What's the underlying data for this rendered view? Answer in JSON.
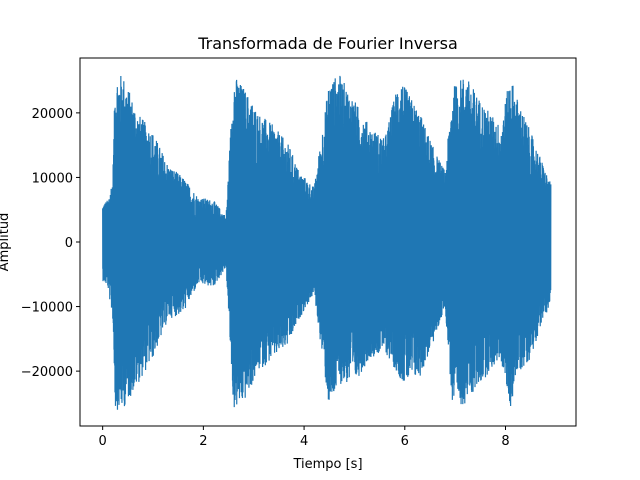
{
  "chart_data": {
    "type": "line",
    "title": "Transformada de Fourier Inversa",
    "xlabel": "Tiempo [s]",
    "ylabel": "Amplitud",
    "xlim": [
      -0.45,
      9.4
    ],
    "ylim": [
      -28500,
      28500
    ],
    "xticks": [
      0,
      2,
      4,
      6,
      8
    ],
    "xtick_labels": [
      "0",
      "2",
      "4",
      "6",
      "8"
    ],
    "yticks": [
      -20000,
      -10000,
      0,
      10000,
      20000
    ],
    "ytick_labels": [
      "−20000",
      "−10000",
      "0",
      "10000",
      "20000"
    ],
    "grid": false,
    "series": [
      {
        "color": "#1f77b4",
        "x_range": [
          0,
          8.9
        ],
        "envelope": [
          [
            0.0,
            6000,
            -6000
          ],
          [
            0.1,
            6500,
            -7000
          ],
          [
            0.2,
            10000,
            -12000
          ],
          [
            0.25,
            26000,
            -26000
          ],
          [
            0.4,
            26000,
            -26000
          ],
          [
            0.7,
            20000,
            -22000
          ],
          [
            1.0,
            17000,
            -18000
          ],
          [
            1.3,
            12000,
            -12000
          ],
          [
            1.6,
            10000,
            -11000
          ],
          [
            1.9,
            7000,
            -6500
          ],
          [
            2.2,
            6500,
            -7000
          ],
          [
            2.45,
            4000,
            -4000
          ],
          [
            2.6,
            26000,
            -26000
          ],
          [
            2.8,
            24000,
            -25000
          ],
          [
            3.1,
            20000,
            -20000
          ],
          [
            3.4,
            18000,
            -18000
          ],
          [
            3.7,
            15000,
            -16000
          ],
          [
            3.9,
            11000,
            -12000
          ],
          [
            4.2,
            8500,
            -8000
          ],
          [
            4.5,
            25000,
            -26000
          ],
          [
            4.7,
            26000,
            -22000
          ],
          [
            5.0,
            22000,
            -22000
          ],
          [
            5.3,
            18000,
            -18000
          ],
          [
            5.6,
            16000,
            -17000
          ],
          [
            5.9,
            26000,
            -21000
          ],
          [
            6.0,
            24000,
            -22000
          ],
          [
            6.3,
            20000,
            -21000
          ],
          [
            6.6,
            14000,
            -15000
          ],
          [
            6.8,
            11000,
            -10000
          ],
          [
            6.95,
            24000,
            -26000
          ],
          [
            7.2,
            26000,
            -25000
          ],
          [
            7.5,
            22000,
            -22000
          ],
          [
            7.9,
            18000,
            -18000
          ],
          [
            8.1,
            26000,
            -26000
          ],
          [
            8.2,
            23000,
            -21000
          ],
          [
            8.5,
            17000,
            -18000
          ],
          [
            8.7,
            13000,
            -13000
          ],
          [
            8.9,
            9000,
            -9500
          ]
        ]
      }
    ]
  }
}
